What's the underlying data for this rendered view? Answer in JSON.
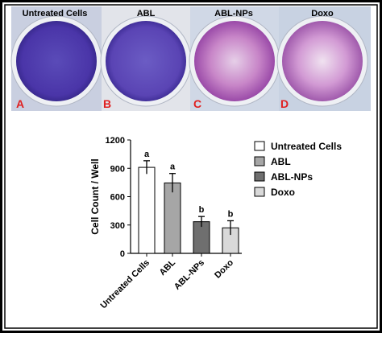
{
  "panel": {
    "labels": [
      "Untreated Cells",
      "ABL",
      "ABL-NPs",
      "Doxo"
    ],
    "letters": [
      "A",
      "B",
      "C",
      "D"
    ]
  },
  "chart_data": {
    "type": "bar",
    "categories": [
      "Untreated Cells",
      "ABL",
      "ABL-NPs",
      "Doxo"
    ],
    "values": [
      910,
      745,
      335,
      270
    ],
    "errors": [
      70,
      100,
      55,
      75
    ],
    "annotations": [
      "a",
      "a",
      "b",
      "b"
    ],
    "colors": [
      "#ffffff",
      "#a6a6a6",
      "#6f6f6f",
      "#d9d9d9"
    ],
    "ylabel": "Cell Count / Well",
    "ylim": [
      0,
      1200
    ],
    "yticks": [
      0,
      300,
      600,
      900,
      1200
    ]
  }
}
